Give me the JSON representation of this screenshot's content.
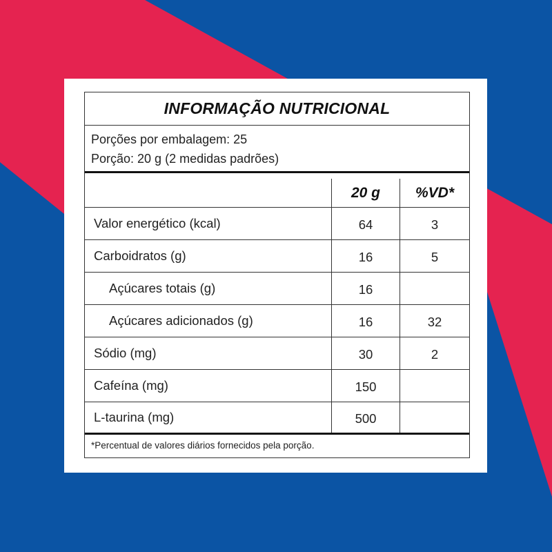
{
  "colors": {
    "background_blue": "#0b54a4",
    "accent_pink": "#e52350"
  },
  "title": "INFORMAÇÃO NUTRICIONAL",
  "servings": {
    "per_package": "Porções por embalagem: 25",
    "portion": "Porção: 20 g (2 medidas padrões)"
  },
  "columns": {
    "amount": "20 g",
    "dv": "%VD*"
  },
  "rows": [
    {
      "label": "Valor energético (kcal)",
      "amount": "64",
      "dv": "3"
    },
    {
      "label": "Carboidratos (g)",
      "amount": "16",
      "dv": "5"
    },
    {
      "label": "Açúcares totais (g)",
      "amount": "16",
      "dv": ""
    },
    {
      "label": "Açúcares adicionados (g)",
      "amount": "16",
      "dv": "32"
    },
    {
      "label": "Sódio (mg)",
      "amount": "30",
      "dv": "2"
    },
    {
      "label": "Cafeína (mg)",
      "amount": "150",
      "dv": ""
    },
    {
      "label": "L-taurina (mg)",
      "amount": "500",
      "dv": ""
    }
  ],
  "footnote": "*Percentual de valores diários fornecidos pela porção."
}
